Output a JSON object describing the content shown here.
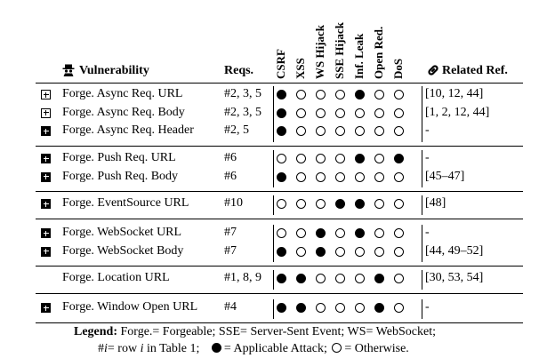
{
  "header": {
    "vulnerability": "Vulnerability",
    "reqs": "Reqs.",
    "attacks": [
      "CSRF",
      "XSS",
      "WS Hijack",
      "SSE Hijack",
      "Inf. Leak",
      "Open Red.",
      "DoS"
    ],
    "related": "Related Ref."
  },
  "icons": {
    "spy": "spy-icon",
    "link": "link-icon",
    "expand_outline": "plus-square-outline-icon",
    "expand_filled": "plus-square-filled-icon"
  },
  "groups": [
    {
      "rows": [
        {
          "icon": "outline",
          "name": "Forge. Async Req. URL",
          "reqs": "#2, 3, 5",
          "attacks": [
            1,
            0,
            0,
            0,
            1,
            0,
            0
          ],
          "ref": "[10, 12, 44]"
        },
        {
          "icon": "outline",
          "name": "Forge. Async Req. Body",
          "reqs": "#2, 3, 5",
          "attacks": [
            1,
            0,
            0,
            0,
            0,
            0,
            0
          ],
          "ref": "[1, 2, 12, 44]"
        },
        {
          "icon": "filled",
          "name": "Forge. Async Req. Header",
          "reqs": "#2, 5",
          "attacks": [
            1,
            0,
            0,
            0,
            0,
            0,
            0
          ],
          "ref": "-"
        }
      ]
    },
    {
      "rows": [
        {
          "icon": "filled",
          "name": "Forge. Push Req. URL",
          "reqs": "#6",
          "attacks": [
            0,
            0,
            0,
            0,
            1,
            0,
            1
          ],
          "ref": "-"
        },
        {
          "icon": "filled",
          "name": "Forge. Push Req. Body",
          "reqs": "#6",
          "attacks": [
            1,
            0,
            0,
            0,
            0,
            0,
            0
          ],
          "ref": "[45–47]"
        }
      ]
    },
    {
      "rows": [
        {
          "icon": "filled",
          "name": "Forge. EventSource URL",
          "reqs": "#10",
          "attacks": [
            0,
            0,
            0,
            1,
            1,
            0,
            0
          ],
          "ref": "[48]"
        }
      ]
    },
    {
      "rows": [
        {
          "icon": "filled",
          "name": "Forge. WebSocket URL",
          "reqs": "#7",
          "attacks": [
            0,
            0,
            1,
            0,
            1,
            0,
            0
          ],
          "ref": "-"
        },
        {
          "icon": "filled",
          "name": "Forge. WebSocket Body",
          "reqs": "#7",
          "attacks": [
            1,
            0,
            1,
            0,
            0,
            0,
            0
          ],
          "ref": "[44, 49–52]"
        }
      ]
    },
    {
      "rows": [
        {
          "icon": "none",
          "name": "Forge. Location URL",
          "reqs": "#1, 8, 9",
          "attacks": [
            1,
            1,
            0,
            0,
            0,
            1,
            0
          ],
          "ref": "[30, 53, 54]"
        }
      ]
    },
    {
      "rows": [
        {
          "icon": "filled",
          "name": "Forge. Window Open URL",
          "reqs": "#4",
          "attacks": [
            1,
            1,
            0,
            0,
            0,
            1,
            0
          ],
          "ref": "-"
        }
      ]
    }
  ],
  "legend": {
    "line1_bold": "Legend:",
    "line1_text": "Forge.= Forgeable; SSE= Server-Sent Event; WS= WebSocket;",
    "line2_pre": "#",
    "line2_var": "i",
    "line2_mid": "= row",
    "line2_var2": "i",
    "line2_table": "in Table 1;",
    "line2_applicable": "= Applicable Attack;",
    "line2_otherwise": "= Otherwise."
  }
}
